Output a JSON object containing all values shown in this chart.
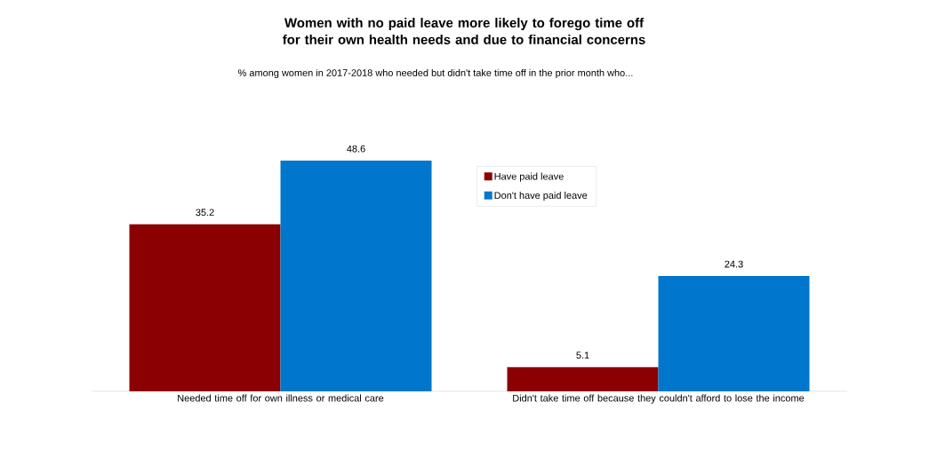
{
  "chart_data": {
    "type": "bar",
    "title": "Women with no paid leave more likely to forego time off for their own health needs and due to financial concerns",
    "subtitle": "% among women in 2017-2018 who needed but didn't take time off in the prior month who...",
    "categories": [
      "Needed time off for own illness or medical care",
      "Didn't take time off because they couldn't afford to lose the income"
    ],
    "series": [
      {
        "name": "Have paid leave",
        "color": "#8b0000",
        "values": [
          35.2,
          5.1
        ]
      },
      {
        "name": "Don't have paid leave",
        "color": "#0077cc",
        "values": [
          48.6,
          24.3
        ]
      }
    ],
    "data_labels": true,
    "legend": "top right"
  }
}
